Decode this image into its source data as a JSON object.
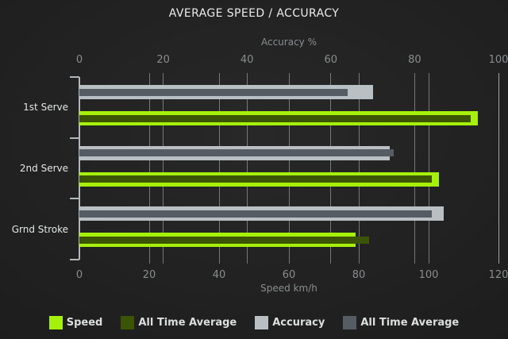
{
  "title": "AVERAGE SPEED / ACCURACY",
  "chart_data": {
    "type": "bar",
    "orientation": "horizontal",
    "title": "AVERAGE SPEED / ACCURACY",
    "categories": [
      "1st Serve",
      "2nd Serve",
      "Grnd Stroke"
    ],
    "axes": {
      "top": {
        "label": "Accuracy %",
        "min": 0,
        "max": 100,
        "ticks": [
          0,
          20,
          40,
          60,
          80,
          100
        ]
      },
      "bottom": {
        "label": "Speed km/h",
        "min": 0,
        "max": 120,
        "ticks": [
          0,
          20,
          40,
          60,
          80,
          100,
          120
        ]
      }
    },
    "series": [
      {
        "name": "Speed",
        "axis": "bottom",
        "row": 1,
        "overlay": false,
        "color": "#a5f10b",
        "values": [
          114,
          103,
          79
        ]
      },
      {
        "name": "All Time Average",
        "axis": "bottom",
        "row": 1,
        "overlay": true,
        "color": "#3c5405",
        "values": [
          112,
          101,
          83
        ]
      },
      {
        "name": "Accuracy",
        "axis": "top",
        "row": 0,
        "overlay": false,
        "color": "#b9bfc3",
        "values": [
          70,
          74,
          87
        ]
      },
      {
        "name": "All Time Average",
        "axis": "top",
        "row": 0,
        "overlay": true,
        "color": "#555c64",
        "values": [
          64,
          75,
          84
        ]
      }
    ],
    "grid": true,
    "legend_position": "bottom"
  }
}
